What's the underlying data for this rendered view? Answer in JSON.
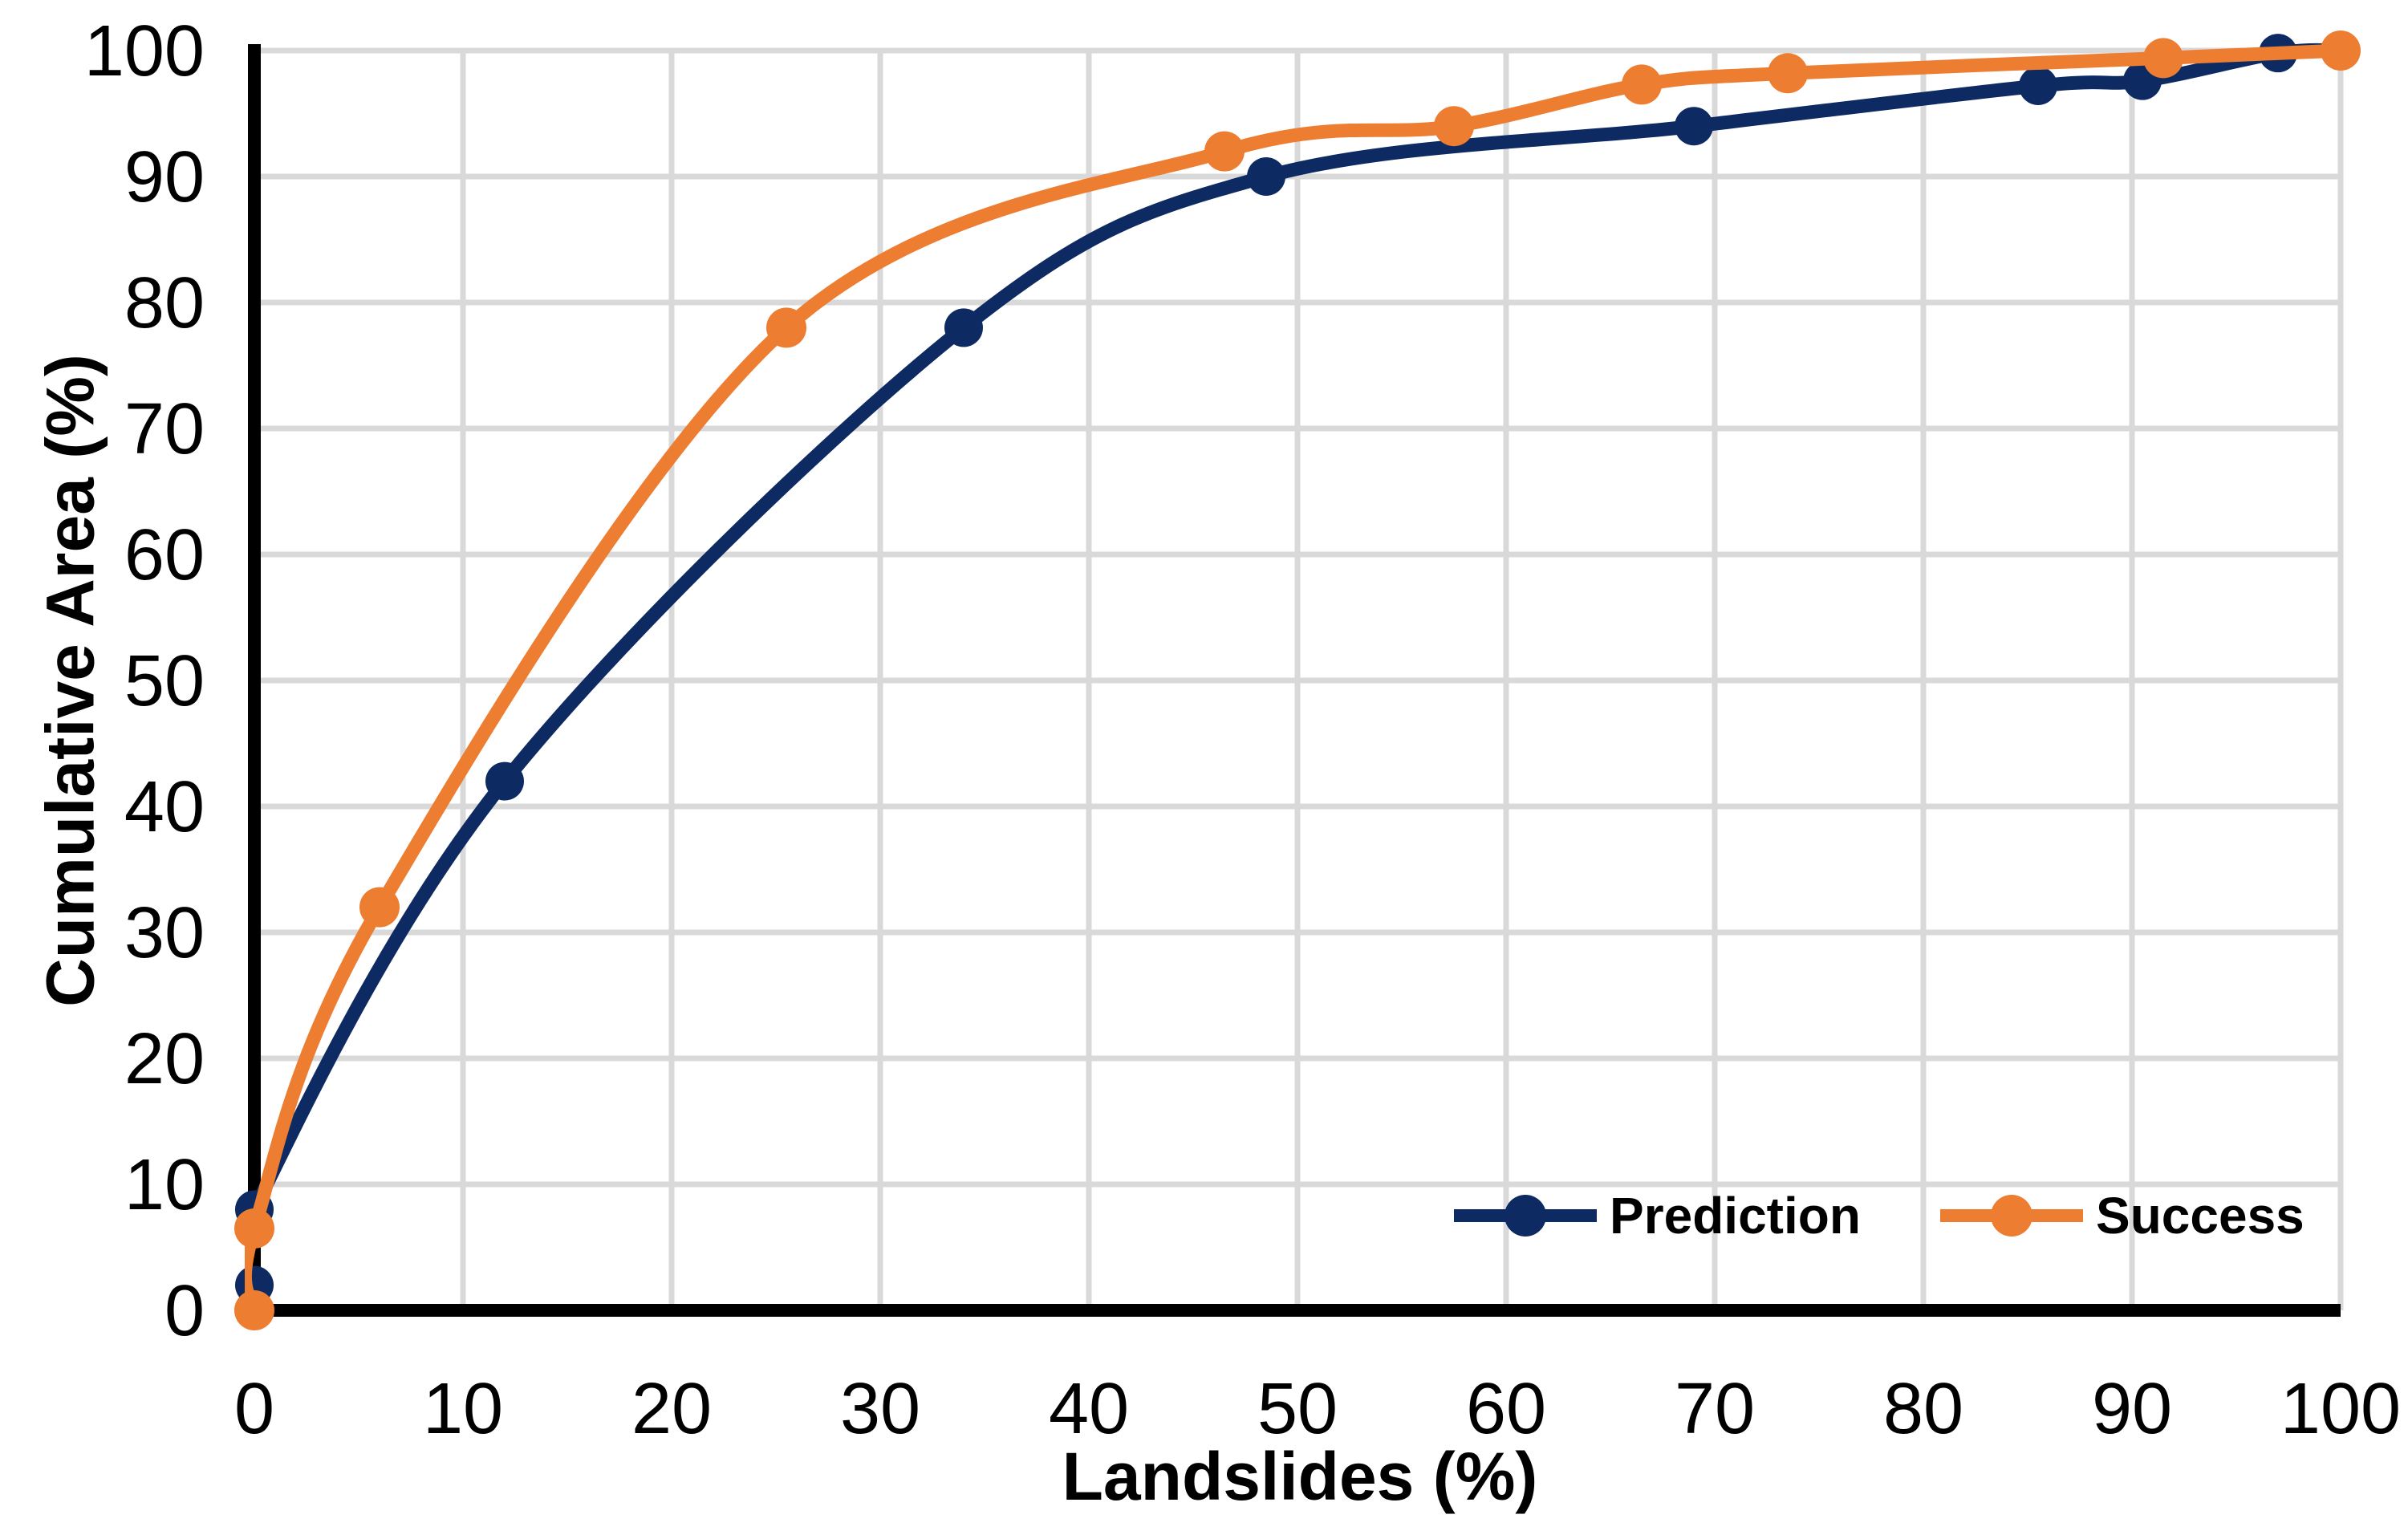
{
  "chart_data": {
    "type": "line",
    "title": "",
    "xlabel": "Landslides (%)",
    "ylabel": "Cumulative Area (%)",
    "xlim": [
      0,
      100
    ],
    "ylim": [
      0,
      100
    ],
    "x_ticks": [
      0,
      10,
      20,
      30,
      40,
      50,
      60,
      70,
      80,
      90,
      100
    ],
    "y_ticks": [
      0,
      10,
      20,
      30,
      40,
      50,
      60,
      70,
      80,
      90,
      100
    ],
    "grid": true,
    "grid_color": "#D9D9D9",
    "axis_color": "#000000",
    "text_color": "#000000",
    "legend_position": "inside-bottom-right",
    "line_style": "smooth",
    "series": [
      {
        "name": "Prediction",
        "color": "#0E2A62",
        "marker": "circle",
        "points": [
          [
            0,
            2
          ],
          [
            0,
            8
          ],
          [
            12,
            42
          ],
          [
            34,
            78
          ],
          [
            48.5,
            90
          ],
          [
            69,
            94
          ],
          [
            85.5,
            97.2
          ],
          [
            90.5,
            97.6
          ],
          [
            97,
            99.8
          ],
          [
            100,
            100
          ]
        ]
      },
      {
        "name": "Success",
        "color": "#ED7D31",
        "marker": "circle",
        "points": [
          [
            0,
            0
          ],
          [
            0,
            6.5
          ],
          [
            6,
            32
          ],
          [
            25.5,
            78
          ],
          [
            46.5,
            92
          ],
          [
            57.5,
            94
          ],
          [
            66.5,
            97.3
          ],
          [
            73.5,
            98.2
          ],
          [
            91.5,
            99.4
          ],
          [
            100,
            100
          ]
        ]
      }
    ]
  }
}
